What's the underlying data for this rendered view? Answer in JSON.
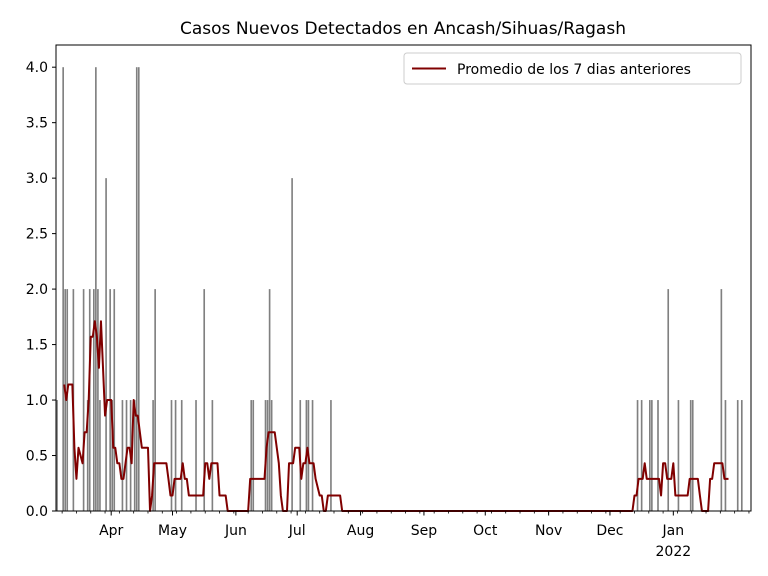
{
  "chart_data": {
    "type": "bar",
    "title": "Casos Nuevos Detectados en Ancash/Sihuas/Ragash",
    "xlabel": "",
    "ylabel": "",
    "ylim": [
      0,
      4.2
    ],
    "xlim": [
      "2021-03-05",
      "2022-02-08"
    ],
    "grid": false,
    "legend_position": "top-right",
    "colors": {
      "bars": "#808080",
      "line": "#800000",
      "axes": "#000000"
    },
    "y_ticks": [
      "0.0",
      "0.5",
      "1.0",
      "1.5",
      "2.0",
      "2.5",
      "3.0",
      "3.5",
      "4.0"
    ],
    "x_ticks": [
      {
        "date": "2021-04-01",
        "label": "Apr"
      },
      {
        "date": "2021-05-01",
        "label": "May"
      },
      {
        "date": "2021-06-01",
        "label": "Jun"
      },
      {
        "date": "2021-07-01",
        "label": "Jul"
      },
      {
        "date": "2021-08-01",
        "label": "Aug"
      },
      {
        "date": "2021-09-01",
        "label": "Sep"
      },
      {
        "date": "2021-10-01",
        "label": "Oct"
      },
      {
        "date": "2021-11-01",
        "label": "Nov"
      },
      {
        "date": "2021-12-01",
        "label": "Dec"
      },
      {
        "date": "2022-01-01",
        "label": "Jan",
        "sublabel": "2022"
      }
    ],
    "series": [
      {
        "type": "bar",
        "points": [
          [
            "2021-03-05",
            1
          ],
          [
            "2021-03-08",
            4
          ],
          [
            "2021-03-09",
            2
          ],
          [
            "2021-03-10",
            2
          ],
          [
            "2021-03-13",
            2
          ],
          [
            "2021-03-18",
            2
          ],
          [
            "2021-03-20",
            1
          ],
          [
            "2021-03-21",
            2
          ],
          [
            "2021-03-23",
            2
          ],
          [
            "2021-03-24",
            4
          ],
          [
            "2021-03-25",
            2
          ],
          [
            "2021-03-26",
            1
          ],
          [
            "2021-03-29",
            3
          ],
          [
            "2021-03-31",
            2
          ],
          [
            "2021-04-01",
            1
          ],
          [
            "2021-04-02",
            2
          ],
          [
            "2021-04-06",
            1
          ],
          [
            "2021-04-08",
            1
          ],
          [
            "2021-04-10",
            1
          ],
          [
            "2021-04-12",
            1
          ],
          [
            "2021-04-13",
            4
          ],
          [
            "2021-04-14",
            4
          ],
          [
            "2021-04-21",
            1
          ],
          [
            "2021-04-22",
            2
          ],
          [
            "2021-04-30",
            1
          ],
          [
            "2021-05-02",
            1
          ],
          [
            "2021-05-05",
            1
          ],
          [
            "2021-05-12",
            1
          ],
          [
            "2021-05-16",
            2
          ],
          [
            "2021-05-20",
            1
          ],
          [
            "2021-06-08",
            1
          ],
          [
            "2021-06-09",
            1
          ],
          [
            "2021-06-15",
            1
          ],
          [
            "2021-06-16",
            1
          ],
          [
            "2021-06-17",
            2
          ],
          [
            "2021-06-18",
            1
          ],
          [
            "2021-06-28",
            3
          ],
          [
            "2021-07-02",
            1
          ],
          [
            "2021-07-05",
            1
          ],
          [
            "2021-07-06",
            1
          ],
          [
            "2021-07-08",
            1
          ],
          [
            "2021-07-17",
            1
          ],
          [
            "2021-12-14",
            1
          ],
          [
            "2021-12-16",
            1
          ],
          [
            "2021-12-20",
            1
          ],
          [
            "2021-12-21",
            1
          ],
          [
            "2021-12-24",
            1
          ],
          [
            "2021-12-29",
            2
          ],
          [
            "2022-01-03",
            1
          ],
          [
            "2022-01-09",
            1
          ],
          [
            "2022-01-10",
            1
          ],
          [
            "2022-01-24",
            2
          ],
          [
            "2022-01-26",
            1
          ],
          [
            "2022-02-01",
            1
          ],
          [
            "2022-02-03",
            1
          ]
        ]
      },
      {
        "type": "line",
        "name": "Promedio de los 7 dias anteriores",
        "points": [
          [
            "2021-03-09",
            1.14
          ],
          [
            "2021-03-10",
            1.0
          ],
          [
            "2021-03-11",
            1.14
          ],
          [
            "2021-03-13",
            1.14
          ],
          [
            "2021-03-14",
            0.57
          ],
          [
            "2021-03-15",
            0.29
          ],
          [
            "2021-03-16",
            0.57
          ],
          [
            "2021-03-18",
            0.43
          ],
          [
            "2021-03-19",
            0.71
          ],
          [
            "2021-03-20",
            0.71
          ],
          [
            "2021-03-21",
            1.0
          ],
          [
            "2021-03-22",
            1.57
          ],
          [
            "2021-03-23",
            1.57
          ],
          [
            "2021-03-24",
            1.71
          ],
          [
            "2021-03-25",
            1.57
          ],
          [
            "2021-03-26",
            1.29
          ],
          [
            "2021-03-27",
            1.71
          ],
          [
            "2021-03-28",
            1.29
          ],
          [
            "2021-03-29",
            0.86
          ],
          [
            "2021-03-30",
            1.0
          ],
          [
            "2021-04-01",
            1.0
          ],
          [
            "2021-04-02",
            0.57
          ],
          [
            "2021-04-03",
            0.57
          ],
          [
            "2021-04-04",
            0.43
          ],
          [
            "2021-04-05",
            0.43
          ],
          [
            "2021-04-06",
            0.29
          ],
          [
            "2021-04-07",
            0.29
          ],
          [
            "2021-04-08",
            0.43
          ],
          [
            "2021-04-09",
            0.57
          ],
          [
            "2021-04-10",
            0.57
          ],
          [
            "2021-04-11",
            0.43
          ],
          [
            "2021-04-12",
            1.0
          ],
          [
            "2021-04-13",
            0.86
          ],
          [
            "2021-04-14",
            0.86
          ],
          [
            "2021-04-16",
            0.57
          ],
          [
            "2021-04-19",
            0.57
          ],
          [
            "2021-04-20",
            0.0
          ],
          [
            "2021-04-21",
            0.14
          ],
          [
            "2021-04-22",
            0.43
          ],
          [
            "2021-04-28",
            0.43
          ],
          [
            "2021-04-29",
            0.29
          ],
          [
            "2021-04-30",
            0.14
          ],
          [
            "2021-05-01",
            0.14
          ],
          [
            "2021-05-02",
            0.29
          ],
          [
            "2021-05-05",
            0.29
          ],
          [
            "2021-05-06",
            0.43
          ],
          [
            "2021-05-07",
            0.29
          ],
          [
            "2021-05-08",
            0.29
          ],
          [
            "2021-05-09",
            0.14
          ],
          [
            "2021-05-16",
            0.14
          ],
          [
            "2021-05-17",
            0.43
          ],
          [
            "2021-05-18",
            0.43
          ],
          [
            "2021-05-19",
            0.29
          ],
          [
            "2021-05-20",
            0.43
          ],
          [
            "2021-05-23",
            0.43
          ],
          [
            "2021-05-24",
            0.14
          ],
          [
            "2021-05-27",
            0.14
          ],
          [
            "2021-05-28",
            0.0
          ],
          [
            "2021-06-07",
            0.0
          ],
          [
            "2021-06-08",
            0.29
          ],
          [
            "2021-06-15",
            0.29
          ],
          [
            "2021-06-16",
            0.57
          ],
          [
            "2021-06-17",
            0.71
          ],
          [
            "2021-06-20",
            0.71
          ],
          [
            "2021-06-22",
            0.43
          ],
          [
            "2021-06-23",
            0.14
          ],
          [
            "2021-06-24",
            0.0
          ],
          [
            "2021-06-26",
            0.0
          ],
          [
            "2021-06-27",
            0.43
          ],
          [
            "2021-06-29",
            0.43
          ],
          [
            "2021-06-30",
            0.57
          ],
          [
            "2021-07-02",
            0.57
          ],
          [
            "2021-07-03",
            0.29
          ],
          [
            "2021-07-04",
            0.43
          ],
          [
            "2021-07-05",
            0.43
          ],
          [
            "2021-07-06",
            0.57
          ],
          [
            "2021-07-07",
            0.43
          ],
          [
            "2021-07-09",
            0.43
          ],
          [
            "2021-07-10",
            0.29
          ],
          [
            "2021-07-12",
            0.14
          ],
          [
            "2021-07-13",
            0.14
          ],
          [
            "2021-07-14",
            0.0
          ],
          [
            "2021-07-15",
            0.0
          ],
          [
            "2021-07-16",
            0.14
          ],
          [
            "2021-07-22",
            0.14
          ],
          [
            "2021-07-23",
            0.0
          ],
          [
            "2021-12-12",
            0.0
          ],
          [
            "2021-12-13",
            0.14
          ],
          [
            "2021-12-14",
            0.14
          ],
          [
            "2021-12-15",
            0.29
          ],
          [
            "2021-12-17",
            0.29
          ],
          [
            "2021-12-18",
            0.43
          ],
          [
            "2021-12-19",
            0.29
          ],
          [
            "2021-12-25",
            0.29
          ],
          [
            "2021-12-26",
            0.14
          ],
          [
            "2021-12-27",
            0.43
          ],
          [
            "2021-12-28",
            0.43
          ],
          [
            "2021-12-29",
            0.29
          ],
          [
            "2021-12-31",
            0.29
          ],
          [
            "2022-01-01",
            0.43
          ],
          [
            "2022-01-02",
            0.14
          ],
          [
            "2022-01-08",
            0.14
          ],
          [
            "2022-01-09",
            0.29
          ],
          [
            "2022-01-13",
            0.29
          ],
          [
            "2022-01-14",
            0.14
          ],
          [
            "2022-01-15",
            0.0
          ],
          [
            "2022-01-18",
            0.0
          ],
          [
            "2022-01-19",
            0.29
          ],
          [
            "2022-01-20",
            0.29
          ],
          [
            "2022-01-21",
            0.43
          ],
          [
            "2022-01-25",
            0.43
          ],
          [
            "2022-01-26",
            0.29
          ],
          [
            "2022-01-28",
            0.29
          ]
        ]
      }
    ]
  }
}
